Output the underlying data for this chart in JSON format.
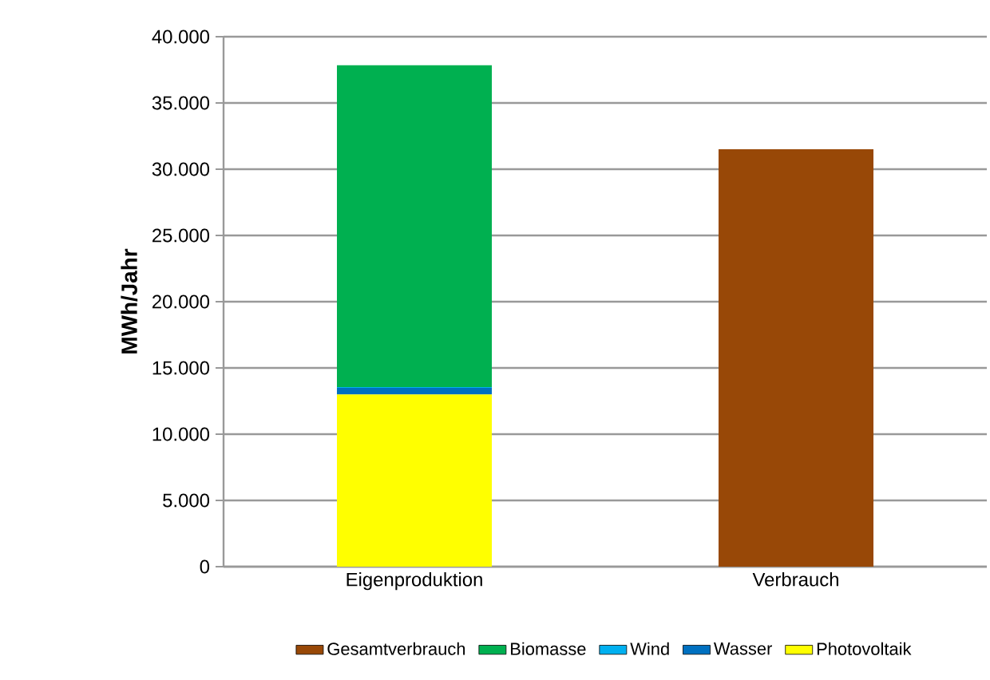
{
  "chart_data": {
    "type": "bar",
    "stacked": true,
    "ylabel": "MWh/Jahr",
    "categories": [
      "Eigenproduktion",
      "Verbrauch"
    ],
    "series": [
      {
        "name": "Photovoltaik",
        "color": "#ffff00",
        "values": [
          13000,
          null
        ]
      },
      {
        "name": "Wasser",
        "color": "#0070c0",
        "values": [
          500,
          null
        ]
      },
      {
        "name": "Wind",
        "color": "#00b0f0",
        "values": [
          50,
          null
        ]
      },
      {
        "name": "Biomasse",
        "color": "#00b050",
        "values": [
          24300,
          null
        ]
      },
      {
        "name": "Gesamtverbrauch",
        "color": "#984807",
        "values": [
          null,
          31500
        ]
      }
    ],
    "ylim": [
      0,
      40000
    ],
    "yticks": [
      {
        "value": 0,
        "label": "0"
      },
      {
        "value": 5000,
        "label": "5.000"
      },
      {
        "value": 10000,
        "label": "10.000"
      },
      {
        "value": 15000,
        "label": "15.000"
      },
      {
        "value": 20000,
        "label": "20.000"
      },
      {
        "value": 25000,
        "label": "25.000"
      },
      {
        "value": 30000,
        "label": "30.000"
      },
      {
        "value": 35000,
        "label": "35.000"
      },
      {
        "value": 40000,
        "label": "40.000"
      }
    ],
    "grid": "y",
    "legend": "bottom"
  }
}
